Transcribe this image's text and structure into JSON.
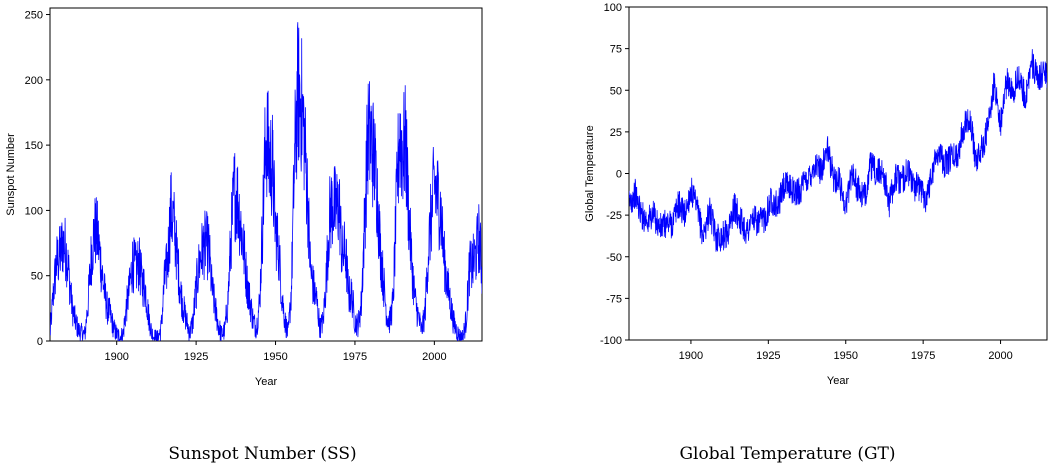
{
  "panels": [
    {
      "caption": "Sunspot Number (SS)"
    },
    {
      "caption": "Global Temperature (GT)"
    }
  ],
  "chart_data": [
    {
      "type": "line",
      "xlabel": "Year",
      "ylabel": "Sunspot Number",
      "xlim": [
        1879,
        2015
      ],
      "ylim": [
        0,
        255
      ],
      "xticks": [
        1900,
        1925,
        1950,
        1975,
        2000
      ],
      "yticks": [
        0,
        50,
        100,
        150,
        200,
        250
      ],
      "grid": false,
      "legend": "none",
      "colors": {
        "line": "#0000ff"
      },
      "series": [
        {
          "x": [
            1879,
            1880,
            1881,
            1882,
            1883,
            1884,
            1885,
            1886,
            1887,
            1888,
            1889,
            1890,
            1891,
            1892,
            1893,
            1894,
            1895,
            1896,
            1897,
            1898,
            1899,
            1900,
            1901,
            1902,
            1903,
            1904,
            1905,
            1906,
            1907,
            1908,
            1909,
            1910,
            1911,
            1912,
            1913,
            1914,
            1915,
            1916,
            1917,
            1918,
            1919,
            1920,
            1921,
            1922,
            1923,
            1924,
            1925,
            1926,
            1927,
            1928,
            1929,
            1930,
            1931,
            1932,
            1933,
            1934,
            1935,
            1936,
            1937,
            1938,
            1939,
            1940,
            1941,
            1942,
            1943,
            1944,
            1945,
            1946,
            1947,
            1948,
            1949,
            1950,
            1951,
            1952,
            1953,
            1954,
            1955,
            1956,
            1957,
            1958,
            1959,
            1960,
            1961,
            1962,
            1963,
            1964,
            1965,
            1966,
            1967,
            1968,
            1969,
            1970,
            1971,
            1972,
            1973,
            1974,
            1975,
            1976,
            1977,
            1978,
            1979,
            1980,
            1981,
            1982,
            1983,
            1984,
            1985,
            1986,
            1987,
            1988,
            1989,
            1990,
            1991,
            1992,
            1993,
            1994,
            1995,
            1996,
            1997,
            1998,
            1999,
            2000,
            2001,
            2002,
            2003,
            2004,
            2005,
            2006,
            2007,
            2008,
            2009,
            2010,
            2011,
            2012,
            2013,
            2014,
            2015
          ],
          "values": [
            5,
            35,
            60,
            65,
            75,
            70,
            50,
            25,
            15,
            8,
            6,
            5,
            30,
            65,
            85,
            80,
            60,
            40,
            25,
            20,
            10,
            5,
            3,
            5,
            25,
            40,
            60,
            55,
            60,
            45,
            40,
            20,
            6,
            3,
            2,
            10,
            45,
            60,
            100,
            90,
            65,
            40,
            25,
            15,
            6,
            15,
            40,
            60,
            70,
            75,
            70,
            40,
            25,
            12,
            5,
            8,
            30,
            80,
            115,
            110,
            90,
            70,
            45,
            30,
            15,
            10,
            30,
            95,
            160,
            140,
            135,
            85,
            70,
            35,
            15,
            5,
            40,
            140,
            190,
            185,
            160,
            115,
            55,
            40,
            30,
            10,
            15,
            50,
            95,
            105,
            100,
            105,
            65,
            70,
            35,
            35,
            15,
            12,
            28,
            90,
            155,
            155,
            140,
            115,
            70,
            45,
            20,
            15,
            30,
            100,
            160,
            145,
            150,
            95,
            55,
            30,
            18,
            8,
            20,
            65,
            95,
            120,
            110,
            100,
            65,
            45,
            30,
            15,
            8,
            3,
            3,
            16,
            55,
            58,
            65,
            80,
            55
          ]
        }
      ]
    },
    {
      "type": "line",
      "xlabel": "Year",
      "ylabel": "Global Temperature",
      "xlim": [
        1880,
        2015
      ],
      "ylim": [
        -100,
        100
      ],
      "xticks": [
        1900,
        1925,
        1950,
        1975,
        2000
      ],
      "yticks": [
        -100,
        -75,
        -50,
        -25,
        0,
        25,
        50,
        75,
        100
      ],
      "grid": false,
      "legend": "none",
      "colors": {
        "line": "#0000ff"
      },
      "series": [
        {
          "x": [
            1880,
            1882,
            1884,
            1886,
            1888,
            1890,
            1892,
            1894,
            1896,
            1898,
            1900,
            1902,
            1904,
            1906,
            1908,
            1910,
            1912,
            1914,
            1916,
            1918,
            1920,
            1922,
            1924,
            1926,
            1928,
            1930,
            1932,
            1934,
            1936,
            1938,
            1940,
            1942,
            1944,
            1946,
            1948,
            1950,
            1952,
            1954,
            1956,
            1958,
            1960,
            1962,
            1964,
            1966,
            1968,
            1970,
            1972,
            1974,
            1976,
            1978,
            1980,
            1982,
            1984,
            1986,
            1988,
            1990,
            1992,
            1994,
            1996,
            1998,
            2000,
            2002,
            2004,
            2006,
            2008,
            2010,
            2012,
            2014,
            2015
          ],
          "values": [
            -18,
            -12,
            -25,
            -28,
            -25,
            -33,
            -30,
            -30,
            -18,
            -25,
            -10,
            -22,
            -38,
            -22,
            -38,
            -38,
            -35,
            -20,
            -28,
            -35,
            -27,
            -30,
            -26,
            -15,
            -20,
            -8,
            -8,
            -12,
            -8,
            -2,
            5,
            2,
            15,
            -2,
            -5,
            -20,
            2,
            -10,
            -15,
            5,
            0,
            2,
            -18,
            -2,
            -5,
            2,
            -8,
            -8,
            -15,
            2,
            15,
            5,
            10,
            10,
            28,
            35,
            8,
            15,
            28,
            55,
            30,
            55,
            50,
            58,
            45,
            68,
            55,
            62,
            60
          ]
        }
      ]
    }
  ]
}
